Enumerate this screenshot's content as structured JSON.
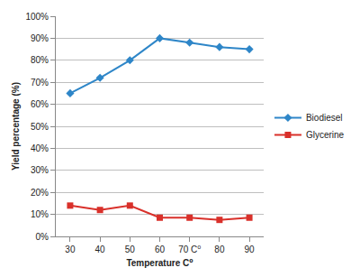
{
  "chart_data": {
    "type": "line",
    "x_label": "Temperature C⁰",
    "y_label": "Yield percentage (%)",
    "categories": [
      "30",
      "40",
      "50",
      "60",
      "70 C⁰",
      "80",
      "90"
    ],
    "series": [
      {
        "name": "Biodiesel",
        "color": "#2e86c8",
        "marker": "diamond",
        "values": [
          65,
          72,
          80,
          90,
          88,
          86,
          85
        ]
      },
      {
        "name": "Glycerine",
        "color": "#d9302a",
        "marker": "square",
        "values": [
          14,
          12,
          14,
          8.5,
          8.5,
          7.5,
          8.5
        ]
      }
    ],
    "ylim": [
      0,
      100
    ],
    "yticks": [
      {
        "value": 0,
        "label": "0%"
      },
      {
        "value": 10,
        "label": "10%"
      },
      {
        "value": 20,
        "label": "20%"
      },
      {
        "value": 30,
        "label": "30%"
      },
      {
        "value": 40,
        "label": "40%"
      },
      {
        "value": 50,
        "label": "50%"
      },
      {
        "value": 60,
        "label": "60%"
      },
      {
        "value": 70,
        "label": "70%"
      },
      {
        "value": 80,
        "label": "80%"
      },
      {
        "value": 90,
        "label": "90%"
      },
      {
        "value": 100,
        "label": "100%"
      }
    ],
    "grid": true,
    "legend": "right"
  }
}
